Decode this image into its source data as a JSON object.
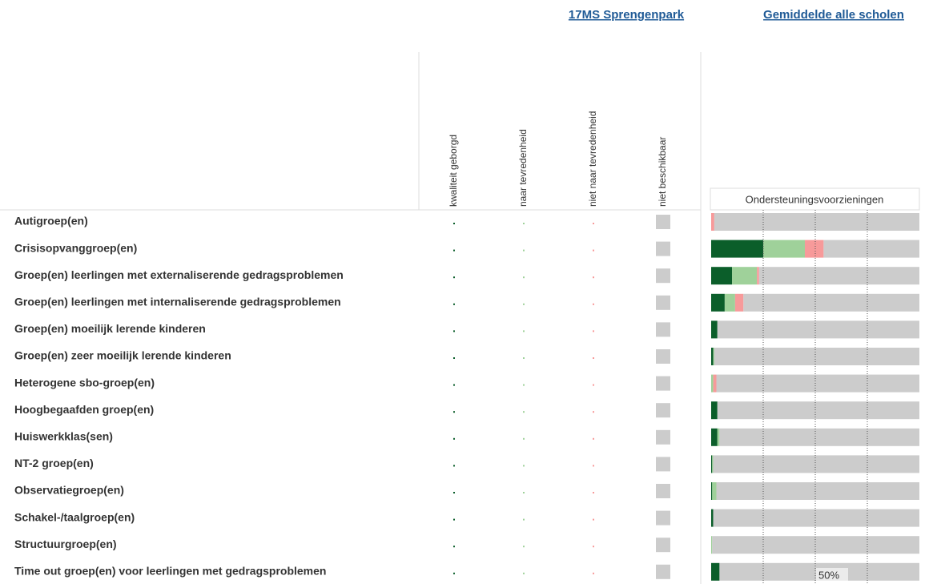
{
  "header": {
    "links": [
      "17MS Sprengenpark",
      "Gemiddelde alle scholen"
    ]
  },
  "chart_data": {
    "type": "bar",
    "orientation": "horizontal",
    "stacked": true,
    "title": "Ondersteuningsvoorzieningen",
    "categories": [
      "Autigroep(en)",
      "Crisisopvanggroep(en)",
      "Groep(en) leerlingen met externaliserende gedragsproblemen",
      "Groep(en) leerlingen met internaliserende gedragsproblemen",
      "Groep(en) moeilijk lerende kinderen",
      "Groep(en) zeer moeilijk lerende kinderen",
      "Heterogene sbo-groep(en)",
      "Hoogbegaafden groep(en)",
      "Huiswerkklas(sen)",
      "NT-2 groep(en)",
      "Observatiegroep(en)",
      "Schakel-/taalgroep(en)",
      "Structuurgroep(en)",
      "Time out groep(en) voor leerlingen met gedragsproblemen"
    ],
    "series": [
      {
        "name": "kwaliteit geborgd",
        "color": "#0b5e2a",
        "values": [
          0,
          25,
          10,
          6.5,
          3,
          1,
          0,
          3,
          3,
          0.5,
          0.5,
          1,
          0,
          4
        ]
      },
      {
        "name": "naar tevredenheid",
        "color": "#9fd19a",
        "values": [
          0,
          20,
          12,
          5,
          0,
          0.5,
          1,
          0,
          1,
          0.5,
          2,
          0,
          0.5,
          0
        ]
      },
      {
        "name": "niet naar tevredenheid",
        "color": "#f79a9a",
        "values": [
          1.5,
          9,
          1,
          4,
          0,
          0,
          1.5,
          0,
          0,
          0,
          0,
          0,
          0,
          0
        ]
      },
      {
        "name": "niet beschikbaar",
        "color": "#cccccc",
        "values": [
          98.5,
          46,
          77,
          84.5,
          97,
          98.5,
          97.5,
          97,
          96,
          99,
          97.5,
          99,
          99.5,
          96
        ]
      }
    ],
    "xlim": [
      0,
      100
    ],
    "xgrid": [
      25,
      50,
      75
    ],
    "xticks": [
      {
        "value": 50,
        "label": "50%"
      }
    ]
  }
}
